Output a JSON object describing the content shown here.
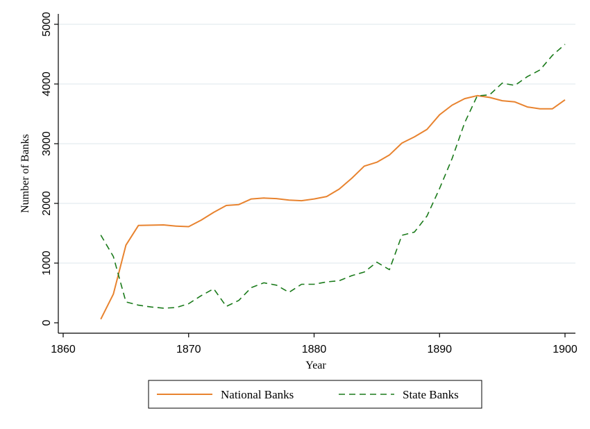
{
  "chart_data": {
    "type": "line",
    "title": "",
    "xlabel": "Year",
    "ylabel": "Number of Banks",
    "xlim": [
      1860,
      1900
    ],
    "ylim": [
      0,
      5000
    ],
    "xticks": [
      1860,
      1870,
      1880,
      1890,
      1900
    ],
    "yticks": [
      0,
      1000,
      2000,
      3000,
      4000,
      5000
    ],
    "grid": "horizontal",
    "legend_position": "bottom",
    "series": [
      {
        "name": "National Banks",
        "color": "#e8832f",
        "dash": "solid",
        "x": [
          1863,
          1864,
          1865,
          1866,
          1867,
          1868,
          1869,
          1870,
          1871,
          1872,
          1873,
          1874,
          1875,
          1876,
          1877,
          1878,
          1879,
          1880,
          1881,
          1882,
          1883,
          1884,
          1885,
          1886,
          1887,
          1888,
          1889,
          1890,
          1891,
          1892,
          1893,
          1894,
          1895,
          1896,
          1897,
          1898,
          1899,
          1900
        ],
        "y": [
          60,
          480,
          1300,
          1630,
          1635,
          1640,
          1620,
          1610,
          1720,
          1850,
          1965,
          1980,
          2075,
          2090,
          2080,
          2055,
          2045,
          2075,
          2115,
          2240,
          2420,
          2625,
          2690,
          2810,
          3010,
          3115,
          3240,
          3485,
          3645,
          3755,
          3805,
          3775,
          3720,
          3700,
          3615,
          3585,
          3585,
          3735
        ]
      },
      {
        "name": "State Banks",
        "color": "#1a7a1a",
        "dash": "dashed",
        "x": [
          1863,
          1864,
          1865,
          1866,
          1867,
          1868,
          1869,
          1870,
          1871,
          1872,
          1873,
          1874,
          1875,
          1876,
          1877,
          1878,
          1879,
          1880,
          1881,
          1882,
          1883,
          1884,
          1885,
          1886,
          1887,
          1888,
          1889,
          1890,
          1891,
          1892,
          1893,
          1894,
          1895,
          1896,
          1897,
          1898,
          1899,
          1900
        ],
        "y": [
          1470,
          1110,
          350,
          295,
          265,
          245,
          255,
          320,
          455,
          570,
          275,
          375,
          590,
          670,
          630,
          510,
          645,
          645,
          685,
          705,
          790,
          850,
          1015,
          890,
          1465,
          1520,
          1790,
          2250,
          2750,
          3350,
          3800,
          3820,
          4015,
          3975,
          4125,
          4235,
          4480,
          4665
        ]
      }
    ]
  },
  "legend": {
    "national_label": "National Banks",
    "state_label": "State Banks"
  }
}
